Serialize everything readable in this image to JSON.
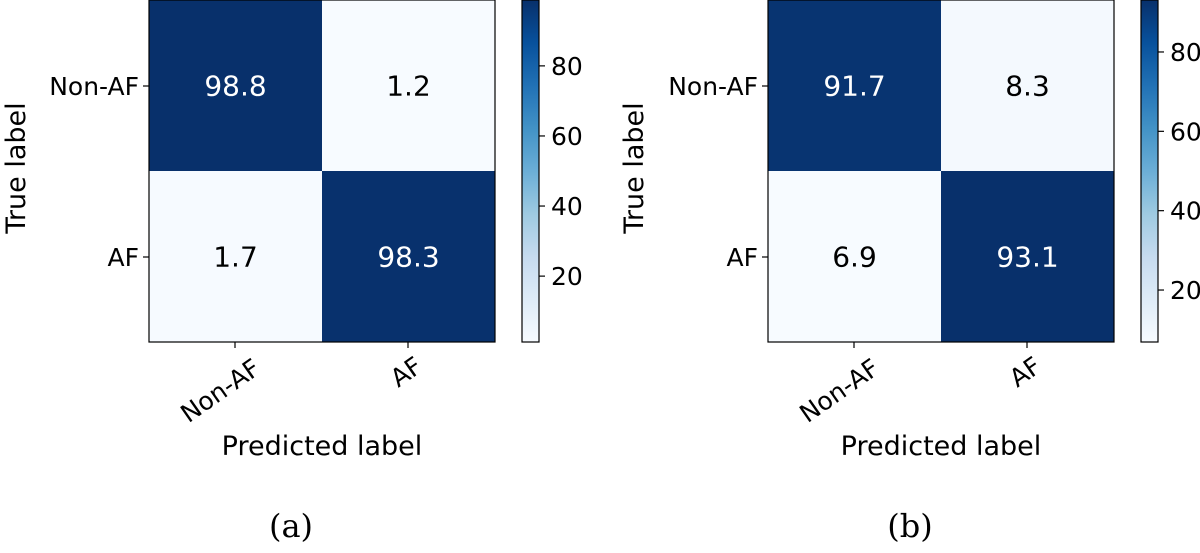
{
  "figure": {
    "panels": [
      {
        "caption": "(a)",
        "xlabel": "Predicted label",
        "ylabel": "True label",
        "x_tick_labels": [
          "Non-AF",
          "AF"
        ],
        "y_tick_labels": [
          "Non-AF",
          "AF"
        ],
        "colorbar_ticks": [
          "20",
          "40",
          "60",
          "80"
        ]
      },
      {
        "caption": "(b)",
        "xlabel": "Predicted label",
        "ylabel": "True label",
        "x_tick_labels": [
          "Non-AF",
          "AF"
        ],
        "y_tick_labels": [
          "Non-AF",
          "AF"
        ],
        "colorbar_ticks": [
          "20",
          "40",
          "60",
          "80"
        ]
      }
    ]
  },
  "colors": {
    "high": "#08306b",
    "low": "#f7fbff",
    "text_on_dark": "#ffffff",
    "text_on_light": "#000000"
  },
  "chart_data": [
    {
      "type": "heatmap",
      "caption": "(a)",
      "xlabel": "Predicted label",
      "ylabel": "True label",
      "x_categories": [
        "Non-AF",
        "AF"
      ],
      "y_categories": [
        "Non-AF",
        "AF"
      ],
      "values": [
        [
          98.8,
          1.2
        ],
        [
          1.7,
          98.3
        ]
      ],
      "colorbar": {
        "range": [
          1.2,
          98.8
        ],
        "ticks": [
          20,
          40,
          60,
          80
        ],
        "colormap": "Blues"
      },
      "grid": false
    },
    {
      "type": "heatmap",
      "caption": "(b)",
      "xlabel": "Predicted label",
      "ylabel": "True label",
      "x_categories": [
        "Non-AF",
        "AF"
      ],
      "y_categories": [
        "Non-AF",
        "AF"
      ],
      "values": [
        [
          91.7,
          8.3
        ],
        [
          6.9,
          93.1
        ]
      ],
      "colorbar": {
        "range": [
          6.9,
          93.1
        ],
        "ticks": [
          20,
          40,
          60,
          80
        ],
        "colormap": "Blues"
      },
      "grid": false
    }
  ]
}
